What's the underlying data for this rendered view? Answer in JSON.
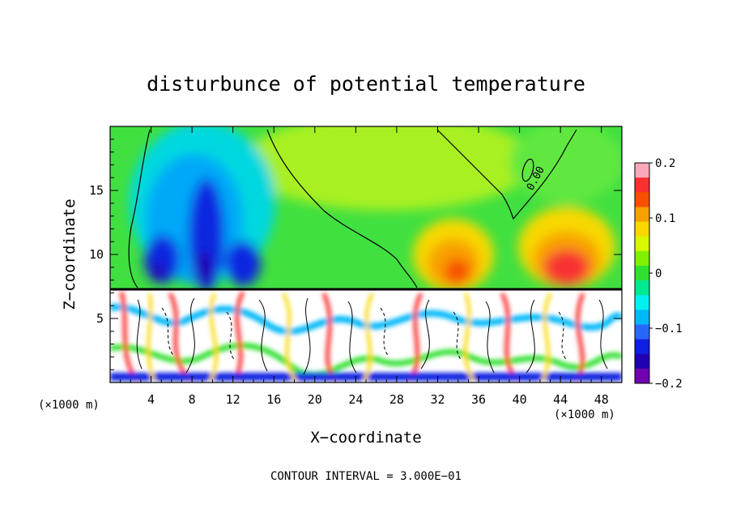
{
  "chart_data": {
    "type": "heatmap",
    "title": "disturbunce of potential temperature",
    "xlabel": "X−coordinate",
    "ylabel": "Z−coordinate",
    "x_unit_left": "(×1000 m)",
    "x_unit_right": "(×1000 m)",
    "footer": "CONTOUR INTERVAL = 3.000E−01",
    "contour_label": "0.00",
    "xlim": [
      0,
      50
    ],
    "ylim": [
      0,
      20
    ],
    "x_ticks": [
      4,
      8,
      12,
      16,
      20,
      24,
      28,
      32,
      36,
      40,
      44,
      48
    ],
    "x_tick_labels": [
      "4",
      "8",
      "12",
      "16",
      "20",
      "24",
      "28",
      "32",
      "36",
      "40",
      "44",
      "48"
    ],
    "y_ticks": [
      5,
      10,
      15
    ],
    "y_tick_labels": [
      "5",
      "10",
      "15"
    ],
    "colorbar": {
      "range": [
        -0.2,
        0.2
      ],
      "tick_values": [
        0.2,
        0.1,
        0,
        -0.1,
        -0.2
      ],
      "tick_labels": [
        "0.2",
        "0.1",
        "0",
        "−0.1",
        "−0.2"
      ],
      "colors": [
        "#f8a8b8",
        "#f83030",
        "#f85000",
        "#f8a000",
        "#f8d800",
        "#d8f800",
        "#80f000",
        "#30e030",
        "#00e890",
        "#00f0f0",
        "#00b8f8",
        "#2868f8",
        "#1020e0",
        "#2000b0",
        "#7000b0"
      ]
    },
    "background_color": "#40e040"
  }
}
